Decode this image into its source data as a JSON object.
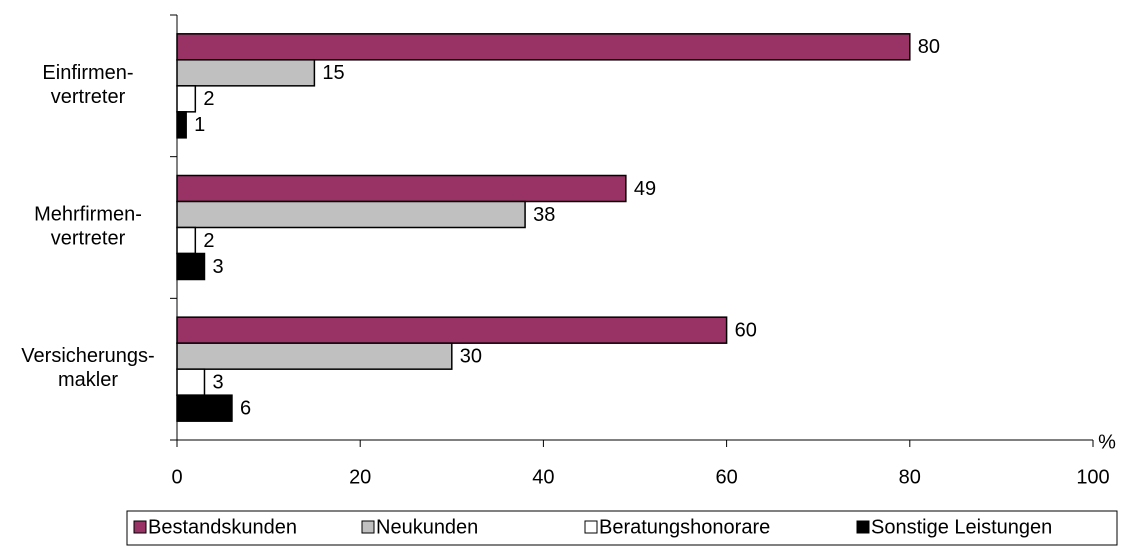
{
  "chart_data": {
    "type": "hbar",
    "categories": [
      [
        "Einfirmen-",
        "vertreter"
      ],
      [
        "Mehrfirmen-",
        "vertreter"
      ],
      [
        "Versicherungs-",
        "makler"
      ]
    ],
    "series": [
      {
        "name": "Bestandskunden",
        "color": "#993366",
        "values": [
          80,
          49,
          60
        ]
      },
      {
        "name": "Neukunden",
        "color": "#c0c0c0",
        "values": [
          15,
          38,
          30
        ]
      },
      {
        "name": "Beratungshonorare",
        "color": "#ffffff",
        "values": [
          2,
          2,
          3
        ]
      },
      {
        "name": "Sonstige Leistungen",
        "color": "#000000",
        "values": [
          1,
          3,
          6
        ]
      }
    ],
    "xlabel": "%",
    "xlim": [
      0,
      100
    ],
    "xticks": [
      0,
      20,
      40,
      60,
      80,
      100
    ],
    "legend": "bottom"
  }
}
